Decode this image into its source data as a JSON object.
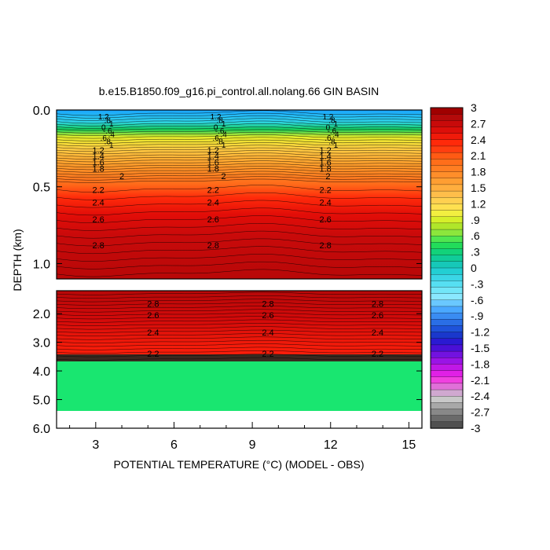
{
  "chart_data": {
    "type": "contour",
    "title": "b.e15.B1850.f09_g16.pi_control.all.nolang.66 GIN BASIN",
    "xlabel": "POTENTIAL TEMPERATURE (°C) (MODEL - OBS)",
    "ylabel": "DEPTH (km)",
    "xlim": [
      1.5,
      15.5
    ],
    "x_ticks": [
      "3",
      "6",
      "9",
      "12",
      "15"
    ],
    "x_tick_values": [
      3,
      6,
      9,
      12,
      15
    ],
    "upper_panel": {
      "ylim": [
        0.0,
        1.1
      ],
      "y_ticks": [
        "0.0",
        "0.5",
        "1.0"
      ],
      "y_tick_values": [
        0.0,
        0.5,
        1.0
      ]
    },
    "lower_panel": {
      "ylim": [
        1.2,
        6.0
      ],
      "y_ticks": [
        "2.0",
        "3.0",
        "4.0",
        "5.0",
        "6.0"
      ],
      "y_tick_values": [
        2.0,
        3.0,
        4.0,
        5.0,
        6.0
      ]
    },
    "colorbar": {
      "levels": [
        -3,
        -2.7,
        -2.4,
        -2.1,
        -1.8,
        -1.5,
        -1.2,
        -0.9,
        -0.6,
        -0.3,
        0,
        0.3,
        0.6,
        0.9,
        1.2,
        1.5,
        1.8,
        2.1,
        2.4,
        2.7,
        3
      ],
      "labels": [
        "3",
        "2.7",
        "2.4",
        "2.1",
        "1.8",
        "1.5",
        "1.2",
        ".9",
        ".6",
        ".3",
        "0",
        "-.3",
        "-.6",
        "-.9",
        "-1.2",
        "-1.5",
        "-1.8",
        "-2.1",
        "-2.4",
        "-2.7",
        "-3"
      ]
    },
    "upper_contours": [
      {
        "value": "1.2",
        "depth_km": 0.26,
        "label_x": [
          3.1,
          7.5,
          11.8
        ]
      },
      {
        "value": "1.4",
        "depth_km": 0.3,
        "label_x": [
          3.1,
          7.5,
          11.8
        ]
      },
      {
        "value": "1.6",
        "depth_km": 0.34,
        "label_x": [
          3.1,
          7.5,
          11.8
        ]
      },
      {
        "value": "1.8",
        "depth_km": 0.38,
        "label_x": [
          3.1,
          7.5,
          11.8
        ]
      },
      {
        "value": "2",
        "depth_km": 0.43,
        "label_x": [
          4.0,
          7.9,
          11.9
        ]
      },
      {
        "value": "2.2",
        "depth_km": 0.52,
        "label_x": [
          3.1,
          7.5,
          11.8
        ]
      },
      {
        "value": "2.4",
        "depth_km": 0.6,
        "label_x": [
          3.1,
          7.5,
          11.8
        ]
      },
      {
        "value": "2.6",
        "depth_km": 0.71,
        "label_x": [
          3.1,
          7.5,
          11.8
        ]
      },
      {
        "value": "2.8",
        "depth_km": 0.88,
        "label_x": [
          3.1,
          7.5,
          11.8
        ]
      }
    ],
    "surface_labels": [
      "1.2",
      ".8",
      "1",
      "0",
      "-.6",
      ".4",
      ".6",
      ".8",
      "1"
    ],
    "lower_contours": [
      {
        "value": "2.8",
        "depth_km": 1.65,
        "label_x": [
          5.2,
          9.6,
          13.8
        ]
      },
      {
        "value": "2.6",
        "depth_km": 2.05,
        "label_x": [
          5.2,
          9.6,
          13.8
        ]
      },
      {
        "value": "2.4",
        "depth_km": 2.65,
        "label_x": [
          5.2,
          9.6,
          13.8
        ]
      },
      {
        "value": "2.2",
        "depth_km": 3.4,
        "label_x": [
          5.2,
          9.6,
          13.8
        ]
      }
    ]
  }
}
